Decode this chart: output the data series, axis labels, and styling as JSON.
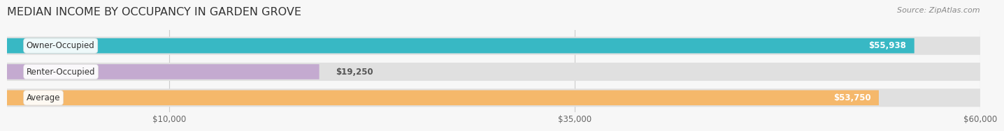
{
  "title": "MEDIAN INCOME BY OCCUPANCY IN GARDEN GROVE",
  "source": "Source: ZipAtlas.com",
  "categories": [
    "Owner-Occupied",
    "Renter-Occupied",
    "Average"
  ],
  "values": [
    55938,
    19250,
    53750
  ],
  "bar_colors": [
    "#38b8c4",
    "#c4aad0",
    "#f5b86b"
  ],
  "bar_bg_color": "#e0e0e0",
  "value_labels": [
    "$55,938",
    "$19,250",
    "$53,750"
  ],
  "x_ticks": [
    10000,
    35000,
    60000
  ],
  "x_tick_labels": [
    "$10,000",
    "$35,000",
    "$60,000"
  ],
  "xlim": [
    0,
    60000
  ],
  "background_color": "#f7f7f7",
  "title_fontsize": 11.5,
  "label_fontsize": 8.5,
  "tick_fontsize": 8.5,
  "source_fontsize": 8
}
